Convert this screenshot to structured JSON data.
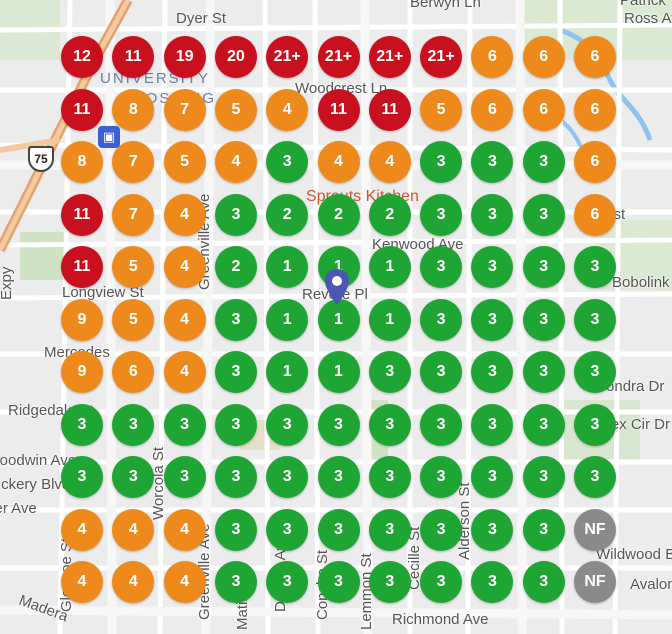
{
  "colors": {
    "red": "#c8101e",
    "orange": "#ee8a1b",
    "green": "#1ea534",
    "gray": "#8a8a8a",
    "pin": "#4b57b0",
    "poi": "#d2542d"
  },
  "icons": {
    "location-pin": "pin",
    "transit-station": "train",
    "highway-shield": "shield"
  },
  "streets": {
    "dyer": "Dyer St",
    "berwyn": "Berwyn Ln",
    "patrick": "Patrick",
    "woodcrest": "Woodcrest Ln",
    "kenwood": "Kenwood Ave",
    "longview": "Longview St",
    "revere": "Revere Pl",
    "mercedes": "Mercedes",
    "ridgedale": "Ridgedale St",
    "goodwin": "Goodwin Ave",
    "vickery": "Vickery Blvd",
    "miller": "Miller Ave",
    "richmond": "Richmond Ave",
    "bobolink": "Bobolink Dr",
    "sondra": "Sondra Dr",
    "rexcir": "Rex Cir Dr",
    "wildwood": "Wildwood Blvd",
    "avalon": "Avalon",
    "tst": "Tst",
    "expy": "Expy",
    "greenville": "Greenville Ave",
    "worcola": "Worcola St",
    "alderson": "Alderson St",
    "cecille": "Cecille St",
    "glencoe": "Glencoe St",
    "delmar": "Delmar Ave",
    "concho": "Concho St",
    "lemmon": "Lemmon St",
    "matilda": "Matilda St",
    "madera": "Madera",
    "ross": "Ross Ave"
  },
  "labels": {
    "university": "UNIVERSITY",
    "campus_suffix": "CROSSING",
    "highway_number": "75",
    "poi_name": "Sprouts Kitchen"
  },
  "grid": {
    "rows": [
      [
        [
          "12",
          "red"
        ],
        [
          "11",
          "red"
        ],
        [
          "19",
          "red"
        ],
        [
          "20",
          "red"
        ],
        [
          "21+",
          "red"
        ],
        [
          "21+",
          "red"
        ],
        [
          "21+",
          "red"
        ],
        [
          "21+",
          "red"
        ],
        [
          "6",
          "orange"
        ],
        [
          "6",
          "orange"
        ],
        [
          "6",
          "orange"
        ]
      ],
      [
        [
          "11",
          "red"
        ],
        [
          "8",
          "orange"
        ],
        [
          "7",
          "orange"
        ],
        [
          "5",
          "orange"
        ],
        [
          "4",
          "orange"
        ],
        [
          "11",
          "red"
        ],
        [
          "11",
          "red"
        ],
        [
          "5",
          "orange"
        ],
        [
          "6",
          "orange"
        ],
        [
          "6",
          "orange"
        ],
        [
          "6",
          "orange"
        ]
      ],
      [
        [
          "8",
          "orange"
        ],
        [
          "7",
          "orange"
        ],
        [
          "5",
          "orange"
        ],
        [
          "4",
          "orange"
        ],
        [
          "3",
          "green"
        ],
        [
          "4",
          "orange"
        ],
        [
          "4",
          "orange"
        ],
        [
          "3",
          "green"
        ],
        [
          "3",
          "green"
        ],
        [
          "3",
          "green"
        ],
        [
          "6",
          "orange"
        ]
      ],
      [
        [
          "11",
          "red"
        ],
        [
          "7",
          "orange"
        ],
        [
          "4",
          "orange"
        ],
        [
          "3",
          "green"
        ],
        [
          "2",
          "green"
        ],
        [
          "2",
          "green"
        ],
        [
          "2",
          "green"
        ],
        [
          "3",
          "green"
        ],
        [
          "3",
          "green"
        ],
        [
          "3",
          "green"
        ],
        [
          "6",
          "orange"
        ]
      ],
      [
        [
          "11",
          "red"
        ],
        [
          "5",
          "orange"
        ],
        [
          "4",
          "orange"
        ],
        [
          "2",
          "green"
        ],
        [
          "1",
          "green"
        ],
        [
          "1",
          "green"
        ],
        [
          "1",
          "green"
        ],
        [
          "3",
          "green"
        ],
        [
          "3",
          "green"
        ],
        [
          "3",
          "green"
        ],
        [
          "3",
          "green"
        ]
      ],
      [
        [
          "9",
          "orange"
        ],
        [
          "5",
          "orange"
        ],
        [
          "4",
          "orange"
        ],
        [
          "3",
          "green"
        ],
        [
          "1",
          "green"
        ],
        [
          "1",
          "green"
        ],
        [
          "1",
          "green"
        ],
        [
          "3",
          "green"
        ],
        [
          "3",
          "green"
        ],
        [
          "3",
          "green"
        ],
        [
          "3",
          "green"
        ]
      ],
      [
        [
          "9",
          "orange"
        ],
        [
          "6",
          "orange"
        ],
        [
          "4",
          "orange"
        ],
        [
          "3",
          "green"
        ],
        [
          "1",
          "green"
        ],
        [
          "1",
          "green"
        ],
        [
          "3",
          "green"
        ],
        [
          "3",
          "green"
        ],
        [
          "3",
          "green"
        ],
        [
          "3",
          "green"
        ],
        [
          "3",
          "green"
        ]
      ],
      [
        [
          "3",
          "green"
        ],
        [
          "3",
          "green"
        ],
        [
          "3",
          "green"
        ],
        [
          "3",
          "green"
        ],
        [
          "3",
          "green"
        ],
        [
          "3",
          "green"
        ],
        [
          "3",
          "green"
        ],
        [
          "3",
          "green"
        ],
        [
          "3",
          "green"
        ],
        [
          "3",
          "green"
        ],
        [
          "3",
          "green"
        ]
      ],
      [
        [
          "3",
          "green"
        ],
        [
          "3",
          "green"
        ],
        [
          "3",
          "green"
        ],
        [
          "3",
          "green"
        ],
        [
          "3",
          "green"
        ],
        [
          "3",
          "green"
        ],
        [
          "3",
          "green"
        ],
        [
          "3",
          "green"
        ],
        [
          "3",
          "green"
        ],
        [
          "3",
          "green"
        ],
        [
          "3",
          "green"
        ]
      ],
      [
        [
          "4",
          "orange"
        ],
        [
          "4",
          "orange"
        ],
        [
          "4",
          "orange"
        ],
        [
          "3",
          "green"
        ],
        [
          "3",
          "green"
        ],
        [
          "3",
          "green"
        ],
        [
          "3",
          "green"
        ],
        [
          "3",
          "green"
        ],
        [
          "3",
          "green"
        ],
        [
          "3",
          "green"
        ],
        [
          "NF",
          "gray"
        ]
      ],
      [
        [
          "4",
          "orange"
        ],
        [
          "4",
          "orange"
        ],
        [
          "4",
          "orange"
        ],
        [
          "3",
          "green"
        ],
        [
          "3",
          "green"
        ],
        [
          "3",
          "green"
        ],
        [
          "3",
          "green"
        ],
        [
          "3",
          "green"
        ],
        [
          "3",
          "green"
        ],
        [
          "3",
          "green"
        ],
        [
          "NF",
          "gray"
        ]
      ]
    ]
  }
}
